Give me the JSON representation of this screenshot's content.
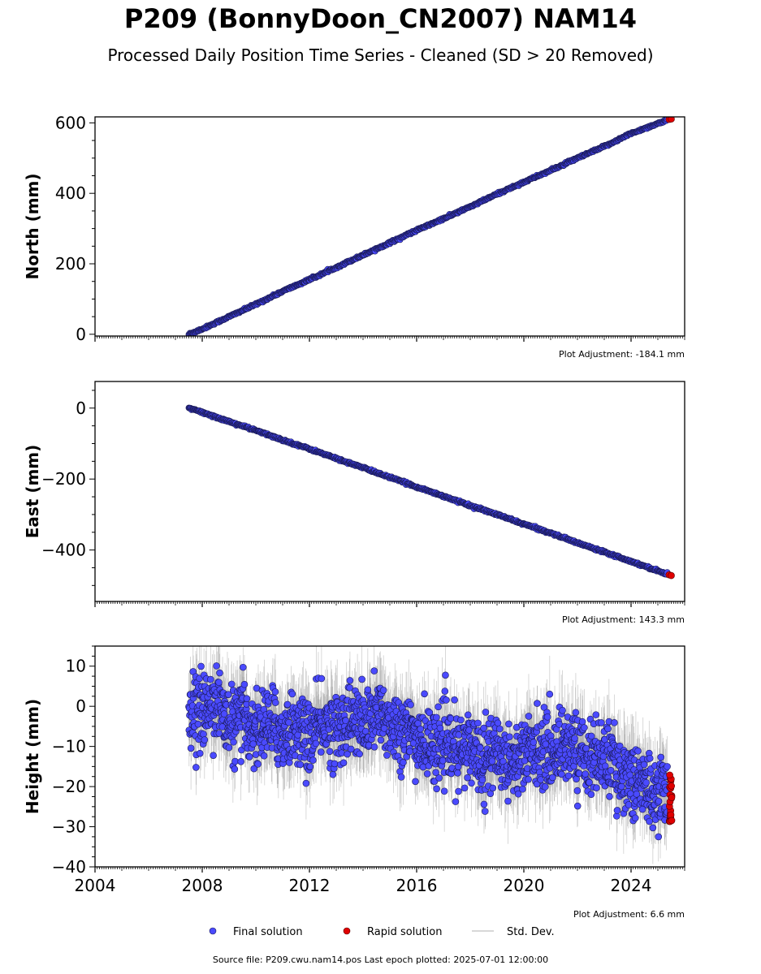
{
  "page": {
    "title": "P209 (BonnyDoon_CN2007) NAM14",
    "subtitle": "Processed Daily Position Time Series - Cleaned (SD > 20 Removed)",
    "source_note": "Source file: P209.cwu.nam14.pos  Last epoch plotted: 2025-07-01 12:00:00"
  },
  "colors": {
    "final": "#4a4aff",
    "final_edge": "#1a1a55",
    "rapid": "#e00000",
    "std_dev": "#9a9a9a"
  },
  "legend": {
    "items": [
      {
        "label": "Final solution",
        "kind": "final"
      },
      {
        "label": "Rapid solution",
        "kind": "rapid"
      },
      {
        "label": "Std. Dev.",
        "kind": "std"
      }
    ]
  },
  "chart_data": [
    {
      "type": "scatter",
      "ylabel": "North (mm)",
      "xlim": [
        2004,
        2026
      ],
      "ylim": [
        -5,
        617
      ],
      "yticks": [
        0,
        200,
        400,
        600
      ],
      "xticks": [
        2004,
        2008,
        2012,
        2016,
        2020,
        2024
      ],
      "show_xtick_labels": false,
      "annotation": "Plot Adjustment: -184.1 mm",
      "series": [
        {
          "name": "Final solution",
          "x": [
            2007.5,
            2008.0,
            2009.0,
            2010.0,
            2011.0,
            2012.0,
            2013.0,
            2014.0,
            2015.0,
            2016.0,
            2017.0,
            2018.0,
            2019.0,
            2020.0,
            2021.0,
            2022.0,
            2023.0,
            2024.0,
            2025.35
          ],
          "y": [
            0,
            15,
            50,
            85,
            122,
            155,
            190,
            225,
            260,
            295,
            328,
            362,
            398,
            432,
            465,
            500,
            533,
            570,
            608
          ]
        },
        {
          "name": "Rapid solution",
          "x": [
            2025.42,
            2025.5
          ],
          "y": [
            610,
            611
          ]
        }
      ]
    },
    {
      "type": "scatter",
      "ylabel": "East (mm)",
      "xlim": [
        2004,
        2026
      ],
      "ylim": [
        -545,
        75
      ],
      "yticks": [
        0,
        -200,
        -400
      ],
      "xticks": [
        2004,
        2008,
        2012,
        2016,
        2020,
        2024
      ],
      "show_xtick_labels": false,
      "annotation": "Plot Adjustment: 143.3 mm",
      "series": [
        {
          "name": "Final solution",
          "x": [
            2007.5,
            2008.0,
            2009.0,
            2010.0,
            2011.0,
            2012.0,
            2013.0,
            2014.0,
            2015.0,
            2016.0,
            2017.0,
            2018.0,
            2019.0,
            2020.0,
            2021.0,
            2022.0,
            2023.0,
            2024.0,
            2025.35
          ],
          "y": [
            0,
            -12,
            -38,
            -63,
            -90,
            -115,
            -142,
            -168,
            -195,
            -222,
            -248,
            -275,
            -300,
            -327,
            -352,
            -380,
            -405,
            -432,
            -468
          ]
        },
        {
          "name": "Rapid solution",
          "x": [
            2025.42,
            2025.5
          ],
          "y": [
            -470,
            -472
          ]
        }
      ]
    },
    {
      "type": "scatter",
      "ylabel": "Height (mm)",
      "xlim": [
        2004,
        2026
      ],
      "ylim": [
        -40,
        15
      ],
      "yticks": [
        10,
        0,
        -10,
        -20,
        -30,
        -40
      ],
      "xticks": [
        2004,
        2008,
        2012,
        2016,
        2020,
        2024
      ],
      "xtick_labels": [
        "2004",
        "2008",
        "2012",
        "2016",
        "2020",
        "2024"
      ],
      "show_xtick_labels": true,
      "annotation": "Plot Adjustment: 6.6 mm",
      "series": [
        {
          "name": "Final solution",
          "x": [
            2007.5,
            2008.0,
            2008.5,
            2009.0,
            2009.5,
            2010.0,
            2010.5,
            2011.0,
            2011.5,
            2012.0,
            2012.5,
            2013.0,
            2013.5,
            2014.0,
            2014.5,
            2015.0,
            2015.5,
            2016.0,
            2016.5,
            2017.0,
            2017.5,
            2018.0,
            2018.5,
            2019.0,
            2019.5,
            2020.0,
            2020.5,
            2021.0,
            2021.5,
            2022.0,
            2022.5,
            2023.0,
            2023.5,
            2024.0,
            2024.5,
            2025.0,
            2025.35
          ],
          "y": [
            0,
            -2,
            2,
            -5,
            -3,
            -6,
            -4,
            -7,
            -5,
            -8,
            -4,
            -6,
            -3,
            -5,
            -2,
            -4,
            -6,
            -8,
            -10,
            -9,
            -12,
            -10,
            -13,
            -11,
            -14,
            -12,
            -10,
            -12,
            -9,
            -11,
            -13,
            -12,
            -16,
            -18,
            -20,
            -22,
            -20
          ]
        },
        {
          "name": "Rapid solution",
          "x": [
            2025.42,
            2025.45,
            2025.48,
            2025.5
          ],
          "y": [
            -18,
            -21,
            -24,
            -27
          ]
        }
      ]
    }
  ]
}
